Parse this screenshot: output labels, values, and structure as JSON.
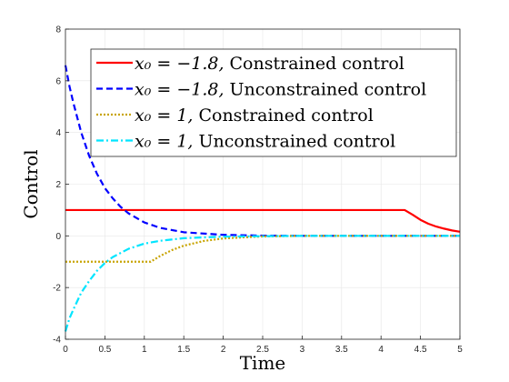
{
  "chart_data": {
    "type": "line",
    "xlabel": "Time",
    "ylabel": "Control",
    "xlim": [
      0,
      5
    ],
    "ylim": [
      -4,
      8
    ],
    "x_ticks": [
      "0",
      "0.5",
      "1",
      "1.5",
      "2",
      "2.5",
      "3",
      "3.5",
      "4",
      "4.5",
      "5"
    ],
    "y_ticks": [
      "-4",
      "-2",
      "0",
      "2",
      "4",
      "6",
      "8"
    ],
    "grid": true,
    "legend_position": "top-right",
    "series": [
      {
        "name": "x0 = −1.8, Constrained control",
        "name_math": "x₀ = −1.8,",
        "name_text": "Constrained control",
        "color": "#ff0000",
        "style": "solid",
        "x": [
          0,
          0.5,
          1,
          1.5,
          2,
          2.5,
          3,
          3.5,
          4,
          4.3,
          4.4,
          4.5,
          4.6,
          4.7,
          4.8,
          4.9,
          5
        ],
        "y": [
          1,
          1,
          1,
          1,
          1,
          1,
          1,
          1,
          1,
          1,
          0.82,
          0.62,
          0.47,
          0.36,
          0.28,
          0.21,
          0.16
        ]
      },
      {
        "name": "x0 = −1.8, Unconstrained control",
        "name_math": "x₀ = −1.8,",
        "name_text": "Unconstrained control",
        "color": "#0000ff",
        "style": "dashed",
        "x": [
          0,
          0.05,
          0.1,
          0.2,
          0.3,
          0.4,
          0.5,
          0.6,
          0.7,
          0.8,
          1,
          1.2,
          1.5,
          2,
          2.5,
          3,
          4,
          5
        ],
        "y": [
          6.6,
          5.8,
          5.15,
          4.0,
          3.1,
          2.4,
          1.85,
          1.45,
          1.12,
          0.87,
          0.52,
          0.31,
          0.14,
          0.04,
          0.01,
          0,
          0,
          0
        ]
      },
      {
        "name": "x0 = 1, Constrained control",
        "name_math": "x₀ = 1,",
        "name_text": "Constrained control",
        "color": "#c8a400",
        "style": "dotted",
        "x": [
          0,
          0.5,
          1,
          1.08,
          1.2,
          1.35,
          1.5,
          1.75,
          2,
          2.5,
          3,
          4,
          5
        ],
        "y": [
          -1,
          -1,
          -1,
          -1,
          -0.78,
          -0.55,
          -0.38,
          -0.2,
          -0.1,
          -0.02,
          0,
          0,
          0
        ]
      },
      {
        "name": "x0 = 1, Unconstrained control",
        "name_math": "x₀ = 1,",
        "name_text": "Unconstrained control",
        "color": "#00e5ff",
        "style": "dashdot",
        "x": [
          0,
          0.05,
          0.1,
          0.2,
          0.3,
          0.4,
          0.5,
          0.6,
          0.8,
          1,
          1.2,
          1.5,
          2,
          2.5,
          3,
          4,
          5
        ],
        "y": [
          -3.7,
          -3.2,
          -2.85,
          -2.2,
          -1.75,
          -1.35,
          -1.05,
          -0.82,
          -0.5,
          -0.3,
          -0.19,
          -0.09,
          -0.03,
          -0.01,
          0,
          0,
          0
        ]
      }
    ]
  }
}
